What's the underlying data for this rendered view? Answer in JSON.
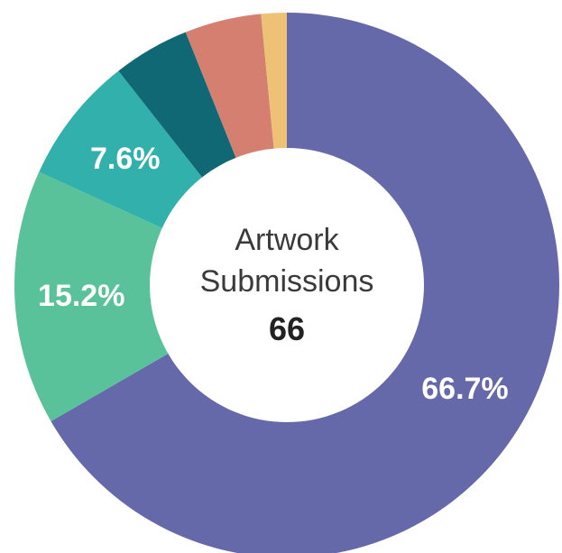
{
  "chart_data": {
    "type": "pie",
    "variant": "donut",
    "center_title_lines": [
      "Artwork",
      "Submissions"
    ],
    "center_value": "66",
    "slices": [
      {
        "value": 44,
        "percent_label": "66.7%",
        "color": "#6568a9"
      },
      {
        "value": 10,
        "percent_label": "15.2%",
        "color": "#59c29a"
      },
      {
        "value": 5,
        "percent_label": "7.6%",
        "color": "#32b0ab"
      },
      {
        "value": 3,
        "percent_label": "",
        "color": "#106875"
      },
      {
        "value": 3,
        "percent_label": "",
        "color": "#d57f70"
      },
      {
        "value": 1,
        "percent_label": "",
        "color": "#edc277"
      }
    ],
    "legend": "none"
  }
}
